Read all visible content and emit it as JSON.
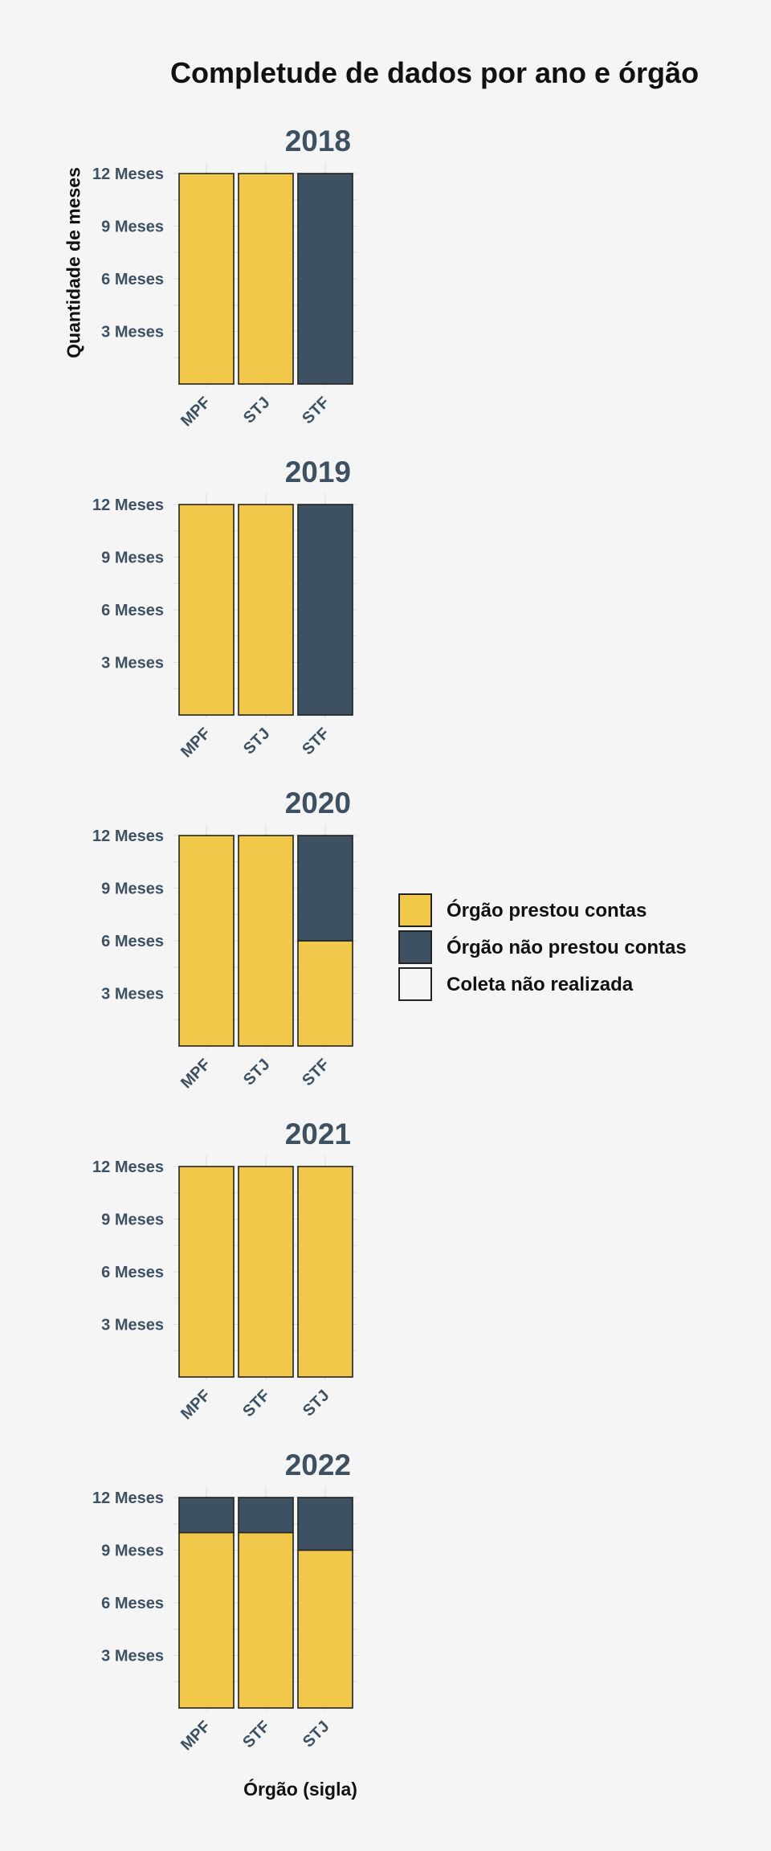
{
  "chart_data": {
    "type": "bar",
    "stacked": true,
    "title": "Completude de dados por ano e órgão",
    "xlabel": "Órgão (sigla)",
    "ylabel": "Quantidade de meses",
    "ylim": [
      0,
      12
    ],
    "y_ticks": [
      3,
      6,
      9,
      12
    ],
    "y_tick_labels": [
      "3 Meses",
      "6 Meses",
      "9 Meses",
      "12 Meses"
    ],
    "grid": true,
    "legend_position": "right",
    "series_meta": [
      {
        "key": "prestou",
        "name": "Órgão prestou contas",
        "color": "#f2c84b"
      },
      {
        "key": "nao_prestou",
        "name": "Órgão não prestou contas",
        "color": "#3d5163"
      },
      {
        "key": "nao_realizada",
        "name": "Coleta não realizada",
        "color": "#f5f5f5"
      }
    ],
    "facets": [
      {
        "year": "2018",
        "categories": [
          "MPF",
          "STJ",
          "STF"
        ],
        "prestou": [
          12,
          12,
          0
        ],
        "nao_prestou": [
          0,
          0,
          12
        ],
        "nao_realizada": [
          0,
          0,
          0
        ]
      },
      {
        "year": "2019",
        "categories": [
          "MPF",
          "STJ",
          "STF"
        ],
        "prestou": [
          12,
          12,
          0
        ],
        "nao_prestou": [
          0,
          0,
          12
        ],
        "nao_realizada": [
          0,
          0,
          0
        ]
      },
      {
        "year": "2020",
        "categories": [
          "MPF",
          "STJ",
          "STF"
        ],
        "prestou": [
          12,
          12,
          6
        ],
        "nao_prestou": [
          0,
          0,
          6
        ],
        "nao_realizada": [
          0,
          0,
          0
        ]
      },
      {
        "year": "2021",
        "categories": [
          "MPF",
          "STF",
          "STJ"
        ],
        "prestou": [
          12,
          12,
          12
        ],
        "nao_prestou": [
          0,
          0,
          0
        ],
        "nao_realizada": [
          0,
          0,
          0
        ]
      },
      {
        "year": "2022",
        "categories": [
          "MPF",
          "STF",
          "STJ"
        ],
        "prestou": [
          10,
          10,
          9
        ],
        "nao_prestou": [
          2,
          2,
          3
        ],
        "nao_realizada": [
          0,
          0,
          0
        ]
      }
    ]
  },
  "colors": {
    "axis_text": "#3d5163",
    "title_text": "#111111",
    "grid": "#dddddd",
    "bar_outline": "#222222",
    "background": "#f5f5f5"
  }
}
